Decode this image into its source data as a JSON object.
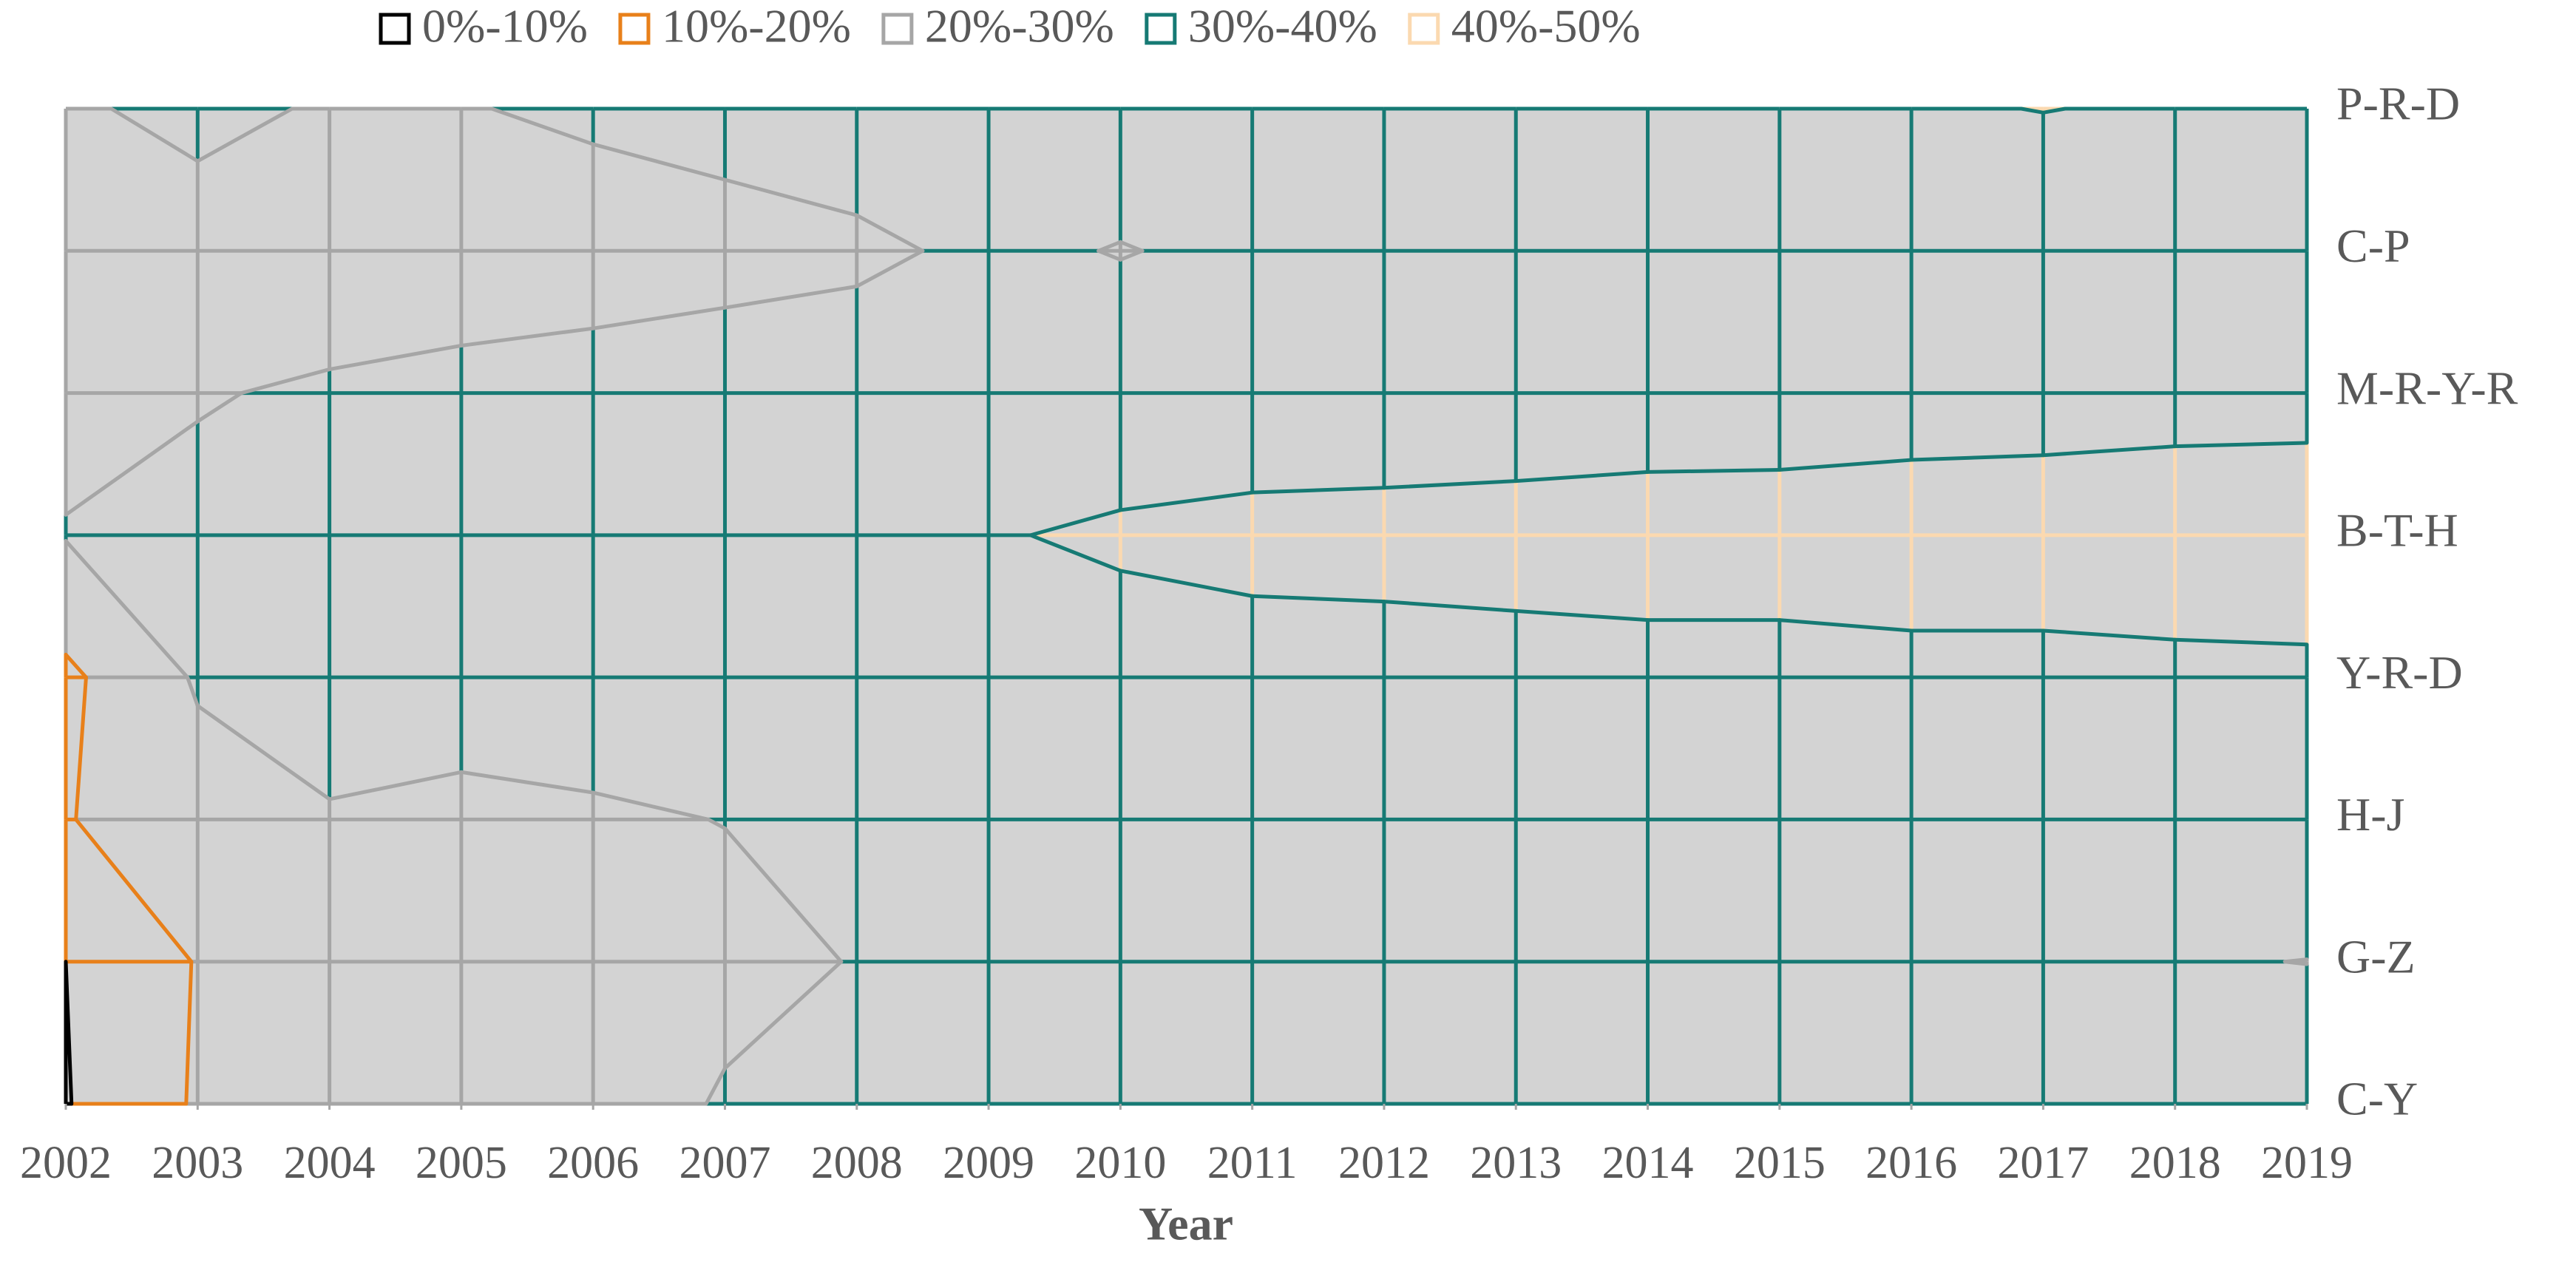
{
  "chart_data": {
    "type": "contour",
    "x_label": "Year",
    "x": [
      2002,
      2003,
      2004,
      2005,
      2006,
      2007,
      2008,
      2009,
      2010,
      2011,
      2012,
      2013,
      2014,
      2015,
      2016,
      2017,
      2018,
      2019
    ],
    "xlim": [
      2002,
      2019
    ],
    "xticks": [
      2002,
      2003,
      2004,
      2005,
      2006,
      2007,
      2008,
      2009,
      2010,
      2011,
      2012,
      2013,
      2014,
      2015,
      2016,
      2017,
      2018,
      2019
    ],
    "categories": [
      "C-Y",
      "G-Z",
      "H-J",
      "Y-R-D",
      "B-T-H",
      "M-R-Y-R",
      "C-P",
      "P-R-D"
    ],
    "bands": [
      {
        "name": "0%-10%",
        "color": "#000000",
        "min": 0,
        "max": 10
      },
      {
        "name": "10%-20%",
        "color": "#e8801a",
        "min": 10,
        "max": 20
      },
      {
        "name": "20%-30%",
        "color": "#a6a6a6",
        "min": 20,
        "max": 30
      },
      {
        "name": "30%-40%",
        "color": "#167a74",
        "min": 30,
        "max": 40
      },
      {
        "name": "40%-50%",
        "color": "#fbd9b0",
        "min": 40,
        "max": 50
      }
    ],
    "z": [
      [
        9.5,
        21,
        23,
        25,
        27,
        30.5,
        32,
        33,
        33.5,
        34,
        34,
        34.5,
        35,
        35,
        35,
        35.5,
        35.5,
        35.5
      ],
      [
        10,
        20.5,
        23,
        25,
        27,
        28.5,
        30.2,
        32,
        33,
        33,
        33,
        33,
        33,
        33,
        32,
        31.5,
        30.5,
        29.9
      ],
      [
        19.5,
        26,
        29.5,
        28.5,
        29.3,
        30.1,
        32,
        33,
        34,
        35,
        35,
        35.5,
        36,
        36,
        36,
        36,
        36,
        36
      ],
      [
        18,
        31,
        33,
        33,
        33,
        34,
        34,
        35,
        35.5,
        36,
        36,
        36.5,
        37.3,
        37.3,
        37.8,
        37.8,
        38.2,
        38.5
      ],
      [
        30.5,
        32,
        33,
        34,
        35,
        36,
        37,
        39.3,
        41.5,
        43,
        43.5,
        44,
        44,
        44,
        44.5,
        44.5,
        45,
        45
      ],
      [
        27,
        29.5,
        31,
        32,
        32.5,
        33,
        33,
        33,
        33,
        33,
        33,
        33.5,
        35,
        35.3,
        36,
        36.5,
        37,
        37.3
      ],
      [
        22,
        23.5,
        25,
        26,
        27,
        28,
        29,
        31,
        29.8,
        31,
        31,
        31.5,
        32,
        32,
        32.5,
        33,
        33,
        33.5
      ],
      [
        28,
        33.8,
        28.5,
        29.7,
        31,
        32,
        33,
        33,
        33,
        34,
        35,
        36,
        37,
        38,
        39,
        40.2,
        39,
        38
      ]
    ],
    "background": "#d3d3d3"
  }
}
